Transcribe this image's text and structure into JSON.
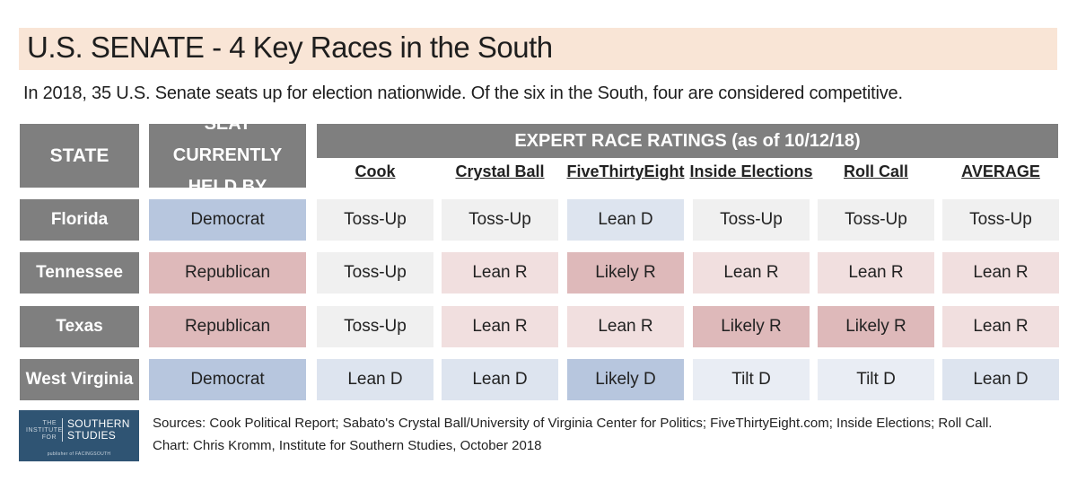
{
  "title": "U.S. SENATE - 4 Key Races in the South",
  "subtitle": "In 2018, 35 U.S. Senate seats up for election nationwide. Of the six in the South, four are considered competitive.",
  "headers": {
    "state": "STATE",
    "seat_line1": "SEAT CURRENTLY",
    "seat_line2": "HELD BY",
    "ratings": "EXPERT RACE RATINGS (as of 10/12/18)"
  },
  "rating_colors": {
    "Toss-Up": "#f0f0f0",
    "Lean D": "#dde4ef",
    "Likely D": "#b7c6de",
    "Tilt D": "#e9edf4",
    "Lean R": "#f1dfdf",
    "Likely R": "#deb9ba",
    "Democrat": "#b7c6de",
    "Republican": "#deb9ba"
  },
  "chart_data": {
    "type": "table",
    "title": "U.S. SENATE - 4 Key Races in the South",
    "columns": [
      "Cook",
      "Crystal Ball",
      "FiveThirtyEight",
      "Inside Elections",
      "Roll Call",
      "AVERAGE"
    ],
    "rows": [
      {
        "state": "Florida",
        "held_by": "Democrat",
        "ratings": [
          "Toss-Up",
          "Toss-Up",
          "Lean D",
          "Toss-Up",
          "Toss-Up",
          "Toss-Up"
        ]
      },
      {
        "state": "Tennessee",
        "held_by": "Republican",
        "ratings": [
          "Toss-Up",
          "Lean R",
          "Likely R",
          "Lean R",
          "Lean R",
          "Lean R"
        ]
      },
      {
        "state": "Texas",
        "held_by": "Republican",
        "ratings": [
          "Toss-Up",
          "Lean R",
          "Lean R",
          "Likely R",
          "Likely R",
          "Lean R"
        ]
      },
      {
        "state": "West Virginia",
        "held_by": "Democrat",
        "ratings": [
          "Lean D",
          "Lean D",
          "Likely D",
          "Tilt D",
          "Tilt D",
          "Lean D"
        ]
      }
    ]
  },
  "footer": {
    "sources": "Sources: Cook Political Report; Sabato's Crystal Ball/University of Virginia Center for Politics; FiveThirtyEight.com; Inside Elections; Roll Call.",
    "credit": "Chart: Chris Kromm, Institute for Southern Studies, October 2018"
  },
  "logo": {
    "left_lines": [
      "THE",
      "INSTITUTE",
      "FOR"
    ],
    "right_lines": [
      "SOUTHERN",
      "STUDIES"
    ],
    "foot": "publisher of FACINGSOUTH"
  }
}
